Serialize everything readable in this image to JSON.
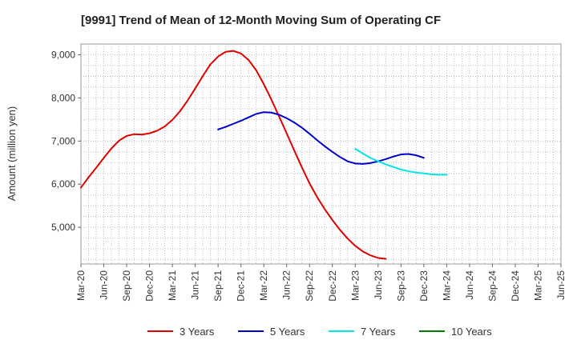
{
  "chart_data": {
    "type": "line",
    "title": "[9991]  Trend of Mean of 12-Month Moving Sum of Operating CF",
    "xlabel": "",
    "ylabel": "Amount (million yen)",
    "ylim": [
      4150,
      9250
    ],
    "yticks": [
      5000,
      6000,
      7000,
      8000,
      9000
    ],
    "ytick_labels": [
      "5,000",
      "6,000",
      "7,000",
      "8,000",
      "9,000"
    ],
    "x_tick_labels": [
      "Mar-20",
      "Jun-20",
      "Sep-20",
      "Dec-20",
      "Mar-21",
      "Jun-21",
      "Sep-21",
      "Dec-21",
      "Mar-22",
      "Jun-22",
      "Sep-22",
      "Dec-22",
      "Mar-23",
      "Jun-23",
      "Sep-23",
      "Dec-23",
      "Mar-24",
      "Jun-24",
      "Sep-24",
      "Dec-24",
      "Mar-25",
      "Jun-25"
    ],
    "grid": true,
    "legend_position": "bottom",
    "series": [
      {
        "name": "3 Years",
        "color": "#e00000",
        "start_index": 0,
        "values": [
          5920,
          6160,
          6380,
          6610,
          6830,
          7010,
          7120,
          7160,
          7150,
          7180,
          7240,
          7340,
          7490,
          7690,
          7940,
          8220,
          8510,
          8780,
          8960,
          9070,
          9090,
          9030,
          8880,
          8640,
          8320,
          7960,
          7570,
          7180,
          6780,
          6390,
          6020,
          5700,
          5420,
          5170,
          4940,
          4740,
          4570,
          4440,
          4350,
          4290,
          4270
        ]
      },
      {
        "name": "5 Years",
        "color": "#0000cc",
        "start_index": 18,
        "values": [
          7270,
          7330,
          7400,
          7470,
          7550,
          7630,
          7670,
          7660,
          7610,
          7530,
          7430,
          7310,
          7170,
          7020,
          6880,
          6750,
          6630,
          6530,
          6480,
          6470,
          6490,
          6530,
          6580,
          6640,
          6690,
          6700,
          6670,
          6610
        ]
      },
      {
        "name": "7 Years",
        "color": "#00e5e5",
        "start_index": 36,
        "values": [
          6820,
          6710,
          6610,
          6530,
          6460,
          6400,
          6340,
          6300,
          6270,
          6250,
          6230,
          6220,
          6220
        ]
      },
      {
        "name": "10 Years",
        "color": "#007a00",
        "start_index": 0,
        "values": []
      }
    ]
  }
}
